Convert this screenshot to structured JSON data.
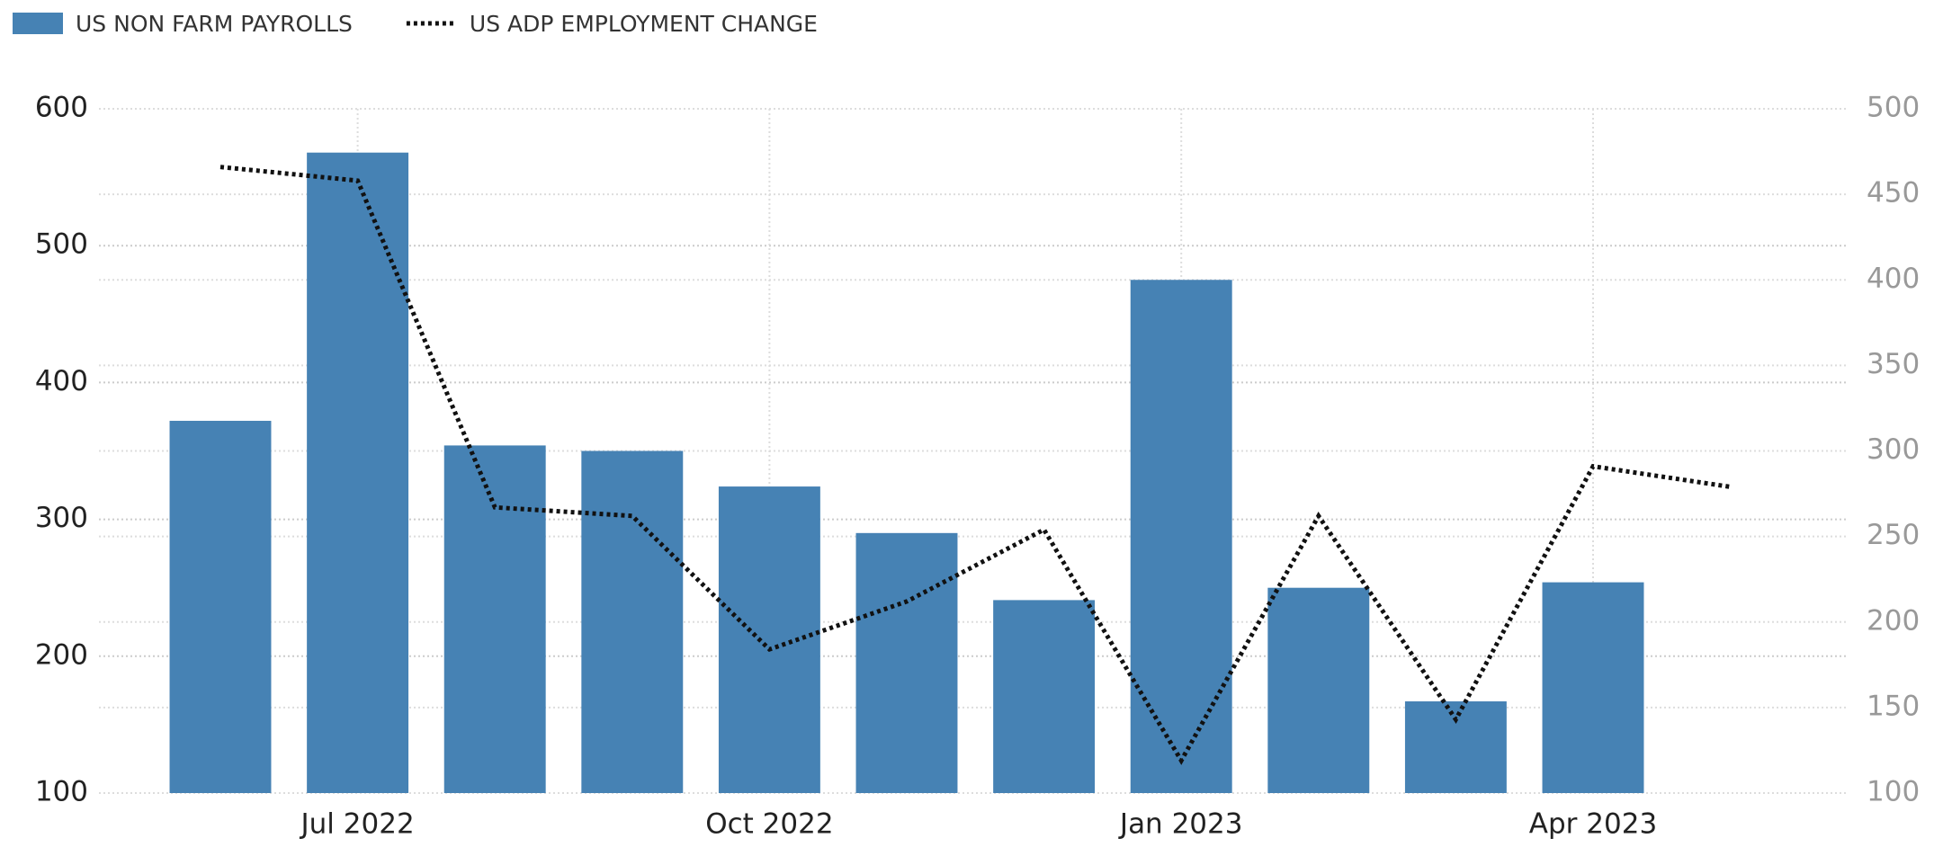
{
  "chart_data": {
    "type": "bar-line",
    "categories": [
      null,
      "Jul 2022",
      null,
      null,
      "Oct 2022",
      null,
      null,
      "Jan 2023",
      null,
      null,
      "Apr 2023",
      null
    ],
    "series": [
      {
        "name": "US NON FARM PAYROLLS",
        "color": "#4682b4",
        "type": "bar",
        "axis": "y",
        "values": [
          372,
          568,
          354,
          350,
          324,
          290,
          241,
          475,
          250,
          167,
          254,
          null
        ]
      },
      {
        "name": "US ADP EMPLOYMENT CHANGE",
        "color": "#111111",
        "type": "line",
        "axis": "y2",
        "values": [
          466,
          458,
          267,
          262,
          184,
          212,
          254,
          119,
          262,
          143,
          291,
          279
        ]
      }
    ],
    "ylim": [
      100,
      600
    ],
    "yticks": [
      100,
      200,
      300,
      400,
      500,
      600
    ],
    "y2lim": [
      100,
      500
    ],
    "y2ticks": [
      100,
      150,
      200,
      250,
      300,
      350,
      400,
      450,
      500
    ],
    "grid": true,
    "legend": "top-left"
  }
}
